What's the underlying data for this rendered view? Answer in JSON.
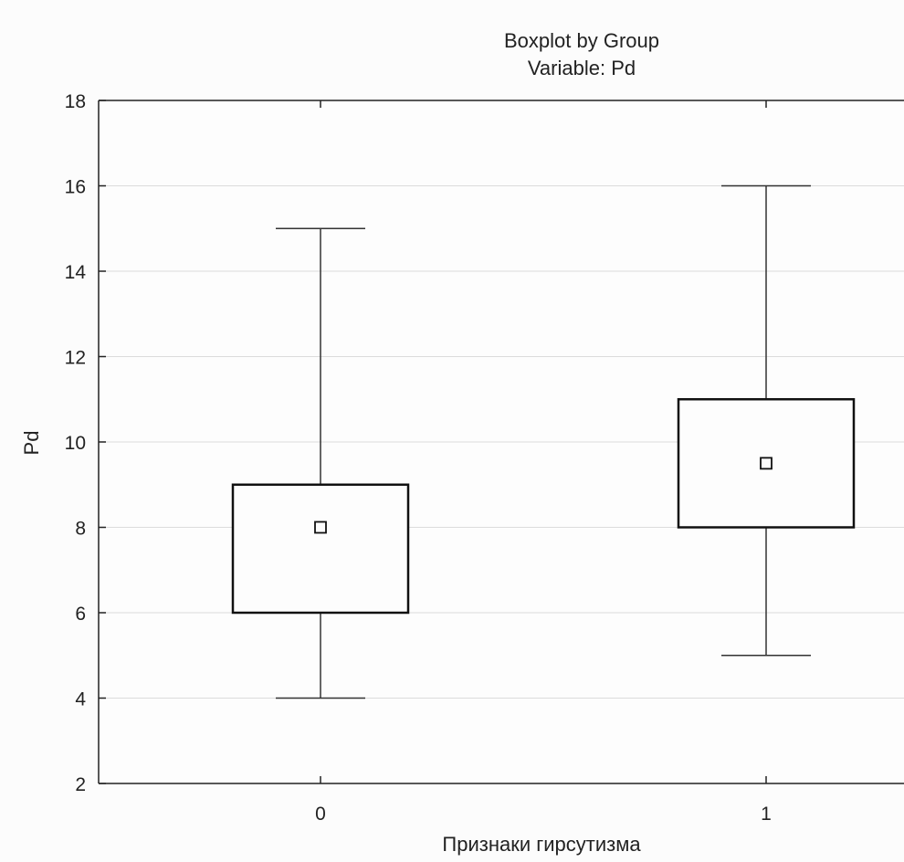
{
  "chart_data": {
    "type": "boxplot",
    "title": "Boxplot by Group",
    "subtitle": "Variable: Pd",
    "xlabel": "Признаки гирсутизма",
    "ylabel": "Pd",
    "categories": [
      "0",
      "1"
    ],
    "ylim": [
      2,
      18
    ],
    "yticks": [
      2,
      4,
      6,
      8,
      10,
      12,
      14,
      16,
      18
    ],
    "grid": true,
    "series": [
      {
        "category": "0",
        "min": 4,
        "q1": 6,
        "center": 8,
        "q3": 9,
        "max": 15
      },
      {
        "category": "1",
        "min": 5,
        "q1": 8,
        "center": 9.5,
        "q3": 11,
        "max": 16
      }
    ]
  }
}
